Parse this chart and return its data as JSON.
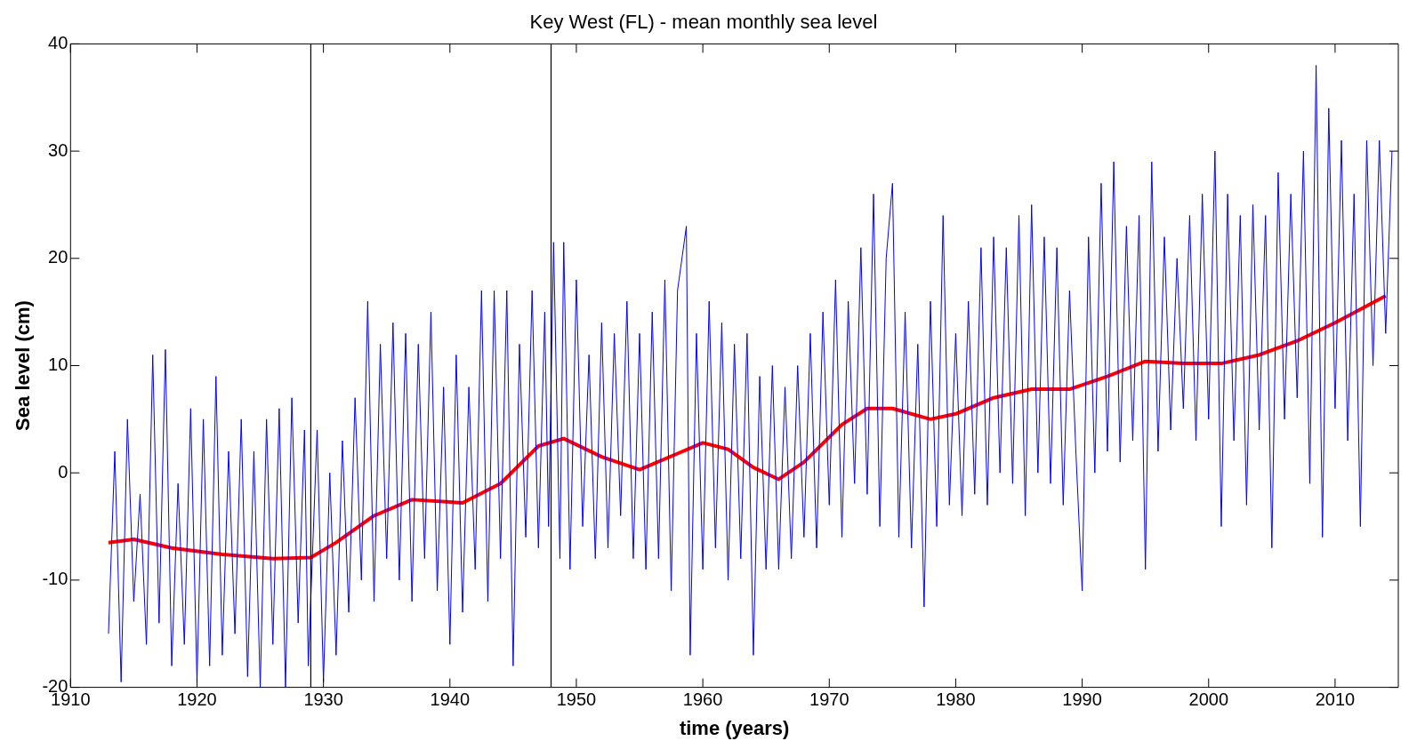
{
  "chart_data": {
    "type": "line",
    "title": "Key West (FL) - mean monthly sea level",
    "xlabel": "time (years)",
    "ylabel": "Sea level (cm)",
    "xlim": [
      1910,
      2015
    ],
    "xticks": [
      1910,
      1920,
      1930,
      1940,
      1950,
      1960,
      1970,
      1980,
      1990,
      2000,
      2010
    ],
    "ylim": [
      -20,
      40
    ],
    "yticks": [
      -20,
      -10,
      0,
      10,
      20,
      30,
      40
    ],
    "grid": false,
    "legend": false,
    "marker": "none",
    "line_style": "solid",
    "ref_lines": [
      {
        "axis": "x",
        "value": 1929,
        "color": "#000000"
      },
      {
        "axis": "x",
        "value": 1948,
        "color": "#000000"
      }
    ],
    "series": [
      {
        "color": "#0000ff",
        "x": [
          1913,
          1913.5,
          1914,
          1914.5,
          1915,
          1915.5,
          1916,
          1916.5,
          1917,
          1917.5,
          1918,
          1918.5,
          1919,
          1919.5,
          1920,
          1920.5,
          1921,
          1921.5,
          1922,
          1922.5,
          1923,
          1923.5,
          1924,
          1924.5,
          1925,
          1925.5,
          1926,
          1926.5,
          1927,
          1927.5,
          1928,
          1928.5,
          1928.8,
          1929.5,
          1930,
          1930.5,
          1931,
          1931.5,
          1932,
          1932.5,
          1933,
          1933.5,
          1934,
          1934.5,
          1935,
          1935.5,
          1936,
          1936.5,
          1937,
          1937.5,
          1938,
          1938.5,
          1939,
          1939.5,
          1940,
          1940.5,
          1941,
          1941.5,
          1942,
          1942.5,
          1943,
          1943.5,
          1944,
          1944.5,
          1945,
          1945.5,
          1946,
          1946.5,
          1947,
          1947.5,
          1947.8,
          1948.2,
          1948.7,
          1949,
          1949.5,
          1950,
          1950.5,
          1951,
          1951.5,
          1952,
          1952.5,
          1953,
          1953.5,
          1954,
          1954.5,
          1955,
          1955.5,
          1956,
          1956.5,
          1957,
          1957.5,
          1958,
          1958.7,
          1959,
          1959.5,
          1960,
          1960.5,
          1961,
          1961.5,
          1962,
          1962.5,
          1963,
          1963.5,
          1964,
          1964.5,
          1965,
          1965.5,
          1966,
          1966.5,
          1967,
          1967.5,
          1968,
          1968.5,
          1969,
          1969.5,
          1970,
          1970.5,
          1971,
          1971.5,
          1972,
          1972.5,
          1973,
          1973.5,
          1974,
          1974.5,
          1975,
          1975.5,
          1976,
          1976.5,
          1977,
          1977.5,
          1978,
          1978.5,
          1979,
          1979.5,
          1980,
          1980.5,
          1981,
          1981.5,
          1982,
          1982.5,
          1983,
          1983.5,
          1984,
          1984.5,
          1985,
          1985.5,
          1986,
          1986.5,
          1987,
          1987.5,
          1988,
          1988.5,
          1989,
          1989.5,
          1990,
          1990.5,
          1991,
          1991.5,
          1992,
          1992.5,
          1993,
          1993.5,
          1994,
          1994.5,
          1995,
          1995.5,
          1996,
          1996.5,
          1997,
          1997.5,
          1998,
          1998.5,
          1999,
          1999.5,
          2000,
          2000.5,
          2001,
          2001.5,
          2002,
          2002.5,
          2003,
          2003.5,
          2004,
          2004.5,
          2005,
          2005.5,
          2006,
          2006.5,
          2007,
          2007.5,
          2008,
          2008.5,
          2009,
          2009.5,
          2010,
          2010.5,
          2011,
          2011.5,
          2012,
          2012.5,
          2013,
          2013.5,
          2014,
          2014.5
        ],
        "values": [
          -15,
          2,
          -19.5,
          5,
          -12,
          -2,
          -16,
          11,
          -14,
          11.5,
          -18,
          -1,
          -16,
          6,
          -19.5,
          5,
          -18,
          9,
          -17,
          2,
          -15,
          5,
          -19,
          2,
          -20,
          5,
          -16,
          6,
          -20,
          7,
          -14,
          4,
          -18,
          4,
          -19.5,
          0,
          -17,
          3,
          -13,
          7,
          -10,
          16,
          -12,
          12,
          -8,
          14,
          -10,
          13,
          -12,
          12,
          -8,
          15,
          -11,
          8,
          -16,
          11,
          -13,
          8,
          -9,
          17,
          -12,
          17,
          -8,
          17,
          -18,
          12,
          -6,
          17,
          -7,
          15,
          -5,
          21.5,
          -8,
          21.5,
          -9,
          18,
          -5,
          11,
          -8,
          14,
          -7,
          13,
          -4,
          16,
          -8,
          13,
          -9,
          15,
          -8,
          18,
          -11,
          17,
          23,
          -17,
          13,
          -9,
          16,
          -7,
          14,
          -10,
          12,
          -8,
          13,
          -17,
          9,
          -9,
          10,
          -9,
          8,
          -8,
          10,
          -6,
          13,
          -7,
          15,
          -3,
          18,
          -6,
          16,
          -1,
          21,
          -2,
          26,
          -5,
          20,
          27,
          -6,
          15,
          -7,
          12,
          -12.5,
          16,
          -5,
          24,
          -3,
          13,
          -4,
          16,
          -2,
          21,
          -3,
          22,
          0,
          21,
          -1,
          24,
          -4,
          25,
          0,
          22,
          -1,
          21,
          -3,
          17,
          2,
          -11,
          22,
          0,
          27,
          2,
          29,
          1,
          23,
          3,
          24,
          -9,
          29,
          2,
          22,
          4,
          20,
          6,
          24,
          3,
          26,
          5,
          30,
          -5,
          26,
          3,
          24,
          -3,
          25,
          4,
          24,
          -7,
          28,
          5,
          26,
          7,
          30,
          -1,
          38,
          -6,
          34,
          6,
          31,
          3,
          26,
          -5,
          31,
          10,
          31,
          13,
          30
        ]
      },
      {
        "color": "#ff0000",
        "x": [
          1913,
          1915,
          1918,
          1922,
          1926,
          1929,
          1931,
          1934,
          1937,
          1941,
          1944,
          1947,
          1949,
          1952,
          1955,
          1958,
          1960,
          1962,
          1964,
          1966,
          1968,
          1971,
          1973,
          1975,
          1978,
          1980,
          1983,
          1986,
          1989,
          1992,
          1995,
          1998,
          2001,
          2004,
          2007,
          2010,
          2014
        ],
        "values": [
          -6.5,
          -6.2,
          -7,
          -7.6,
          -8,
          -7.9,
          -6.5,
          -4,
          -2.5,
          -2.8,
          -1,
          2.5,
          3.2,
          1.5,
          0.3,
          1.8,
          2.8,
          2.2,
          0.5,
          -0.6,
          1,
          4.5,
          6,
          6,
          5,
          5.5,
          7,
          7.8,
          7.8,
          9,
          10.4,
          10.2,
          10.2,
          11,
          12.3,
          14,
          16.5
        ]
      }
    ]
  }
}
